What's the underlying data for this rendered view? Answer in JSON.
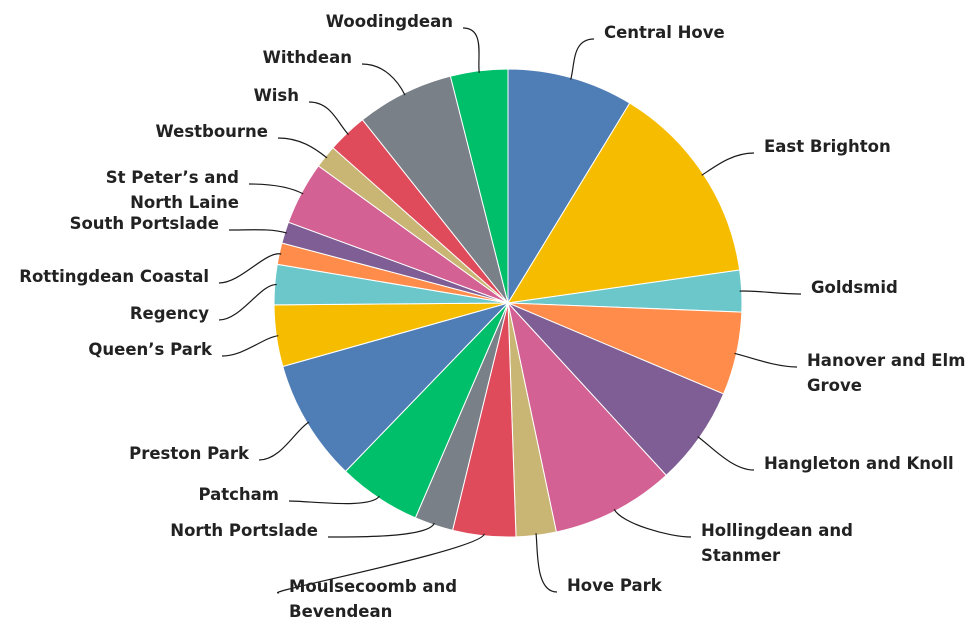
{
  "chart_data": {
    "type": "pie",
    "start": "top",
    "direction": "clockwise",
    "slices": [
      {
        "label": [
          "Central Hove"
        ],
        "value": 8.8,
        "color": "#4f7db6"
      },
      {
        "label": [
          "East Brighton"
        ],
        "value": 14.2,
        "color": "#f6bd00"
      },
      {
        "label": [
          "Goldsmid"
        ],
        "value": 2.9,
        "color": "#6cc7cb"
      },
      {
        "label": [
          "Hanover and Elm",
          "Grove"
        ],
        "value": 5.8,
        "color": "#ff8c4a"
      },
      {
        "label": [
          "Hangleton and Knoll"
        ],
        "value": 6.9,
        "color": "#7e5e94"
      },
      {
        "label": [
          "Hollingdean and",
          "Stanmer"
        ],
        "value": 8.6,
        "color": "#d36193"
      },
      {
        "label": [
          "Hove Park"
        ],
        "value": 2.8,
        "color": "#c9b674"
      },
      {
        "label": [
          "Moulsecoomb and",
          "Bevendean"
        ],
        "value": 4.4,
        "color": "#e04b5c"
      },
      {
        "label": [
          "North Portslade"
        ],
        "value": 2.7,
        "color": "#798088"
      },
      {
        "label": [
          "Patcham"
        ],
        "value": 5.8,
        "color": "#00bf6a"
      },
      {
        "label": [
          "Preston Park"
        ],
        "value": 8.5,
        "color": "#4f7db6"
      },
      {
        "label": [
          "Queen’s Park"
        ],
        "value": 4.3,
        "color": "#f6bd00"
      },
      {
        "label": [
          "Regency"
        ],
        "value": 2.8,
        "color": "#6cc7cb"
      },
      {
        "label": [
          "Rottingdean Coastal"
        ],
        "value": 1.5,
        "color": "#ff8c4a"
      },
      {
        "label": [
          "South Portslade"
        ],
        "value": 1.5,
        "color": "#7e5e94"
      },
      {
        "label": [
          "St Peter’s and",
          "North Laine"
        ],
        "value": 4.4,
        "color": "#d36193"
      },
      {
        "label": [
          "Westbourne"
        ],
        "value": 1.6,
        "color": "#c9b674"
      },
      {
        "label": [
          "Wish"
        ],
        "value": 2.8,
        "color": "#e04b5c"
      },
      {
        "label": [
          "Withdean"
        ],
        "value": 6.8,
        "color": "#798088"
      },
      {
        "label": [
          "Woodingdean"
        ],
        "value": 4.0,
        "color": "#00bf6a"
      }
    ]
  }
}
